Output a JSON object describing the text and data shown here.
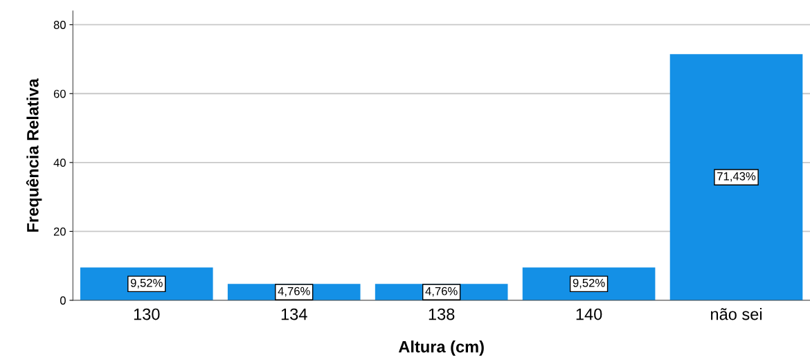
{
  "chart_data": {
    "type": "bar",
    "xlabel": "Altura (cm)",
    "ylabel": "Frequência Relativa",
    "categories": [
      "130",
      "134",
      "138",
      "140",
      "não sei"
    ],
    "values": [
      9.52,
      4.76,
      4.76,
      9.52,
      71.43
    ],
    "value_labels": [
      "9,52%",
      "4,76%",
      "4,76%",
      "9,52%",
      "71,43%"
    ],
    "color": "#1490e6",
    "ylim": [
      0,
      84
    ],
    "yticks": [
      0,
      20,
      40,
      60,
      80
    ],
    "grid": "y"
  }
}
